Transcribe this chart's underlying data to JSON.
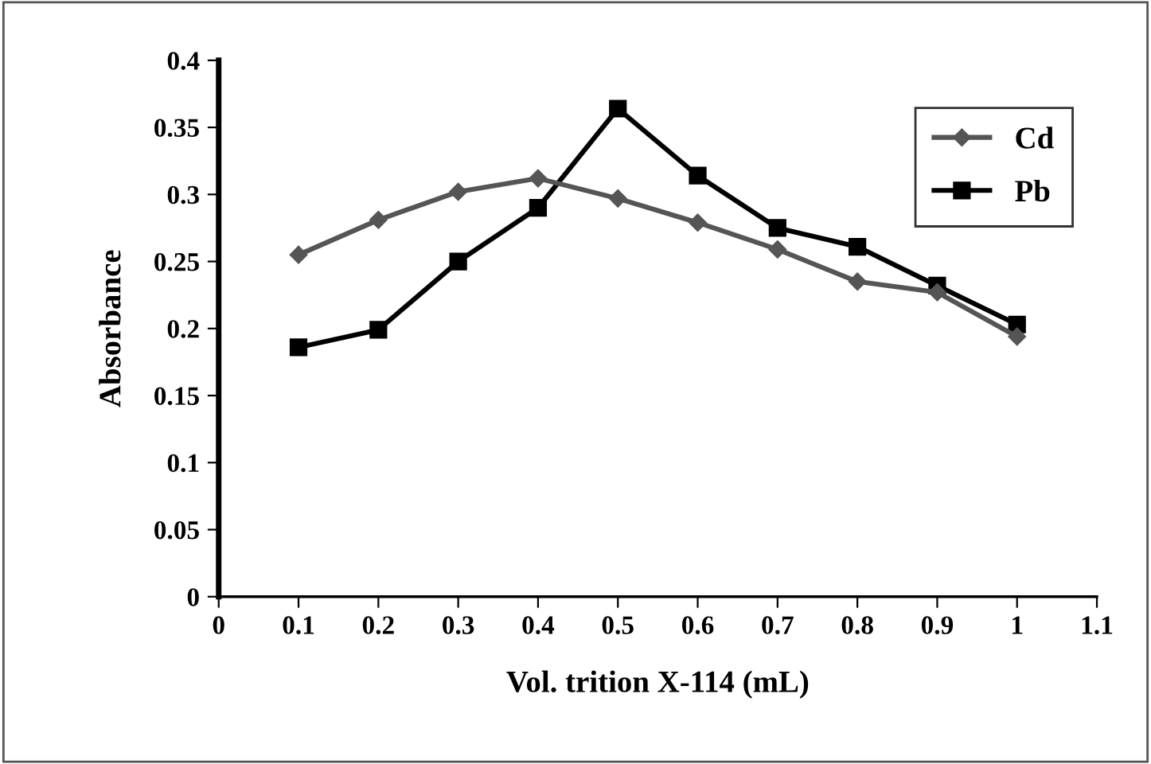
{
  "chart_data": {
    "type": "line",
    "xlabel": "Vol. trition X-114 (mL)",
    "ylabel": "Absorbance",
    "x": [
      0.1,
      0.2,
      0.3,
      0.4,
      0.5,
      0.6,
      0.7,
      0.8,
      0.9,
      1.0
    ],
    "series": [
      {
        "name": "Cd",
        "color": "#555555",
        "marker": "diamond",
        "values": [
          0.255,
          0.281,
          0.302,
          0.312,
          0.297,
          0.279,
          0.259,
          0.235,
          0.227,
          0.194
        ]
      },
      {
        "name": "Pb",
        "color": "#000000",
        "marker": "square",
        "values": [
          0.186,
          0.199,
          0.25,
          0.29,
          0.364,
          0.314,
          0.275,
          0.261,
          0.232,
          0.203
        ]
      }
    ],
    "xlim": [
      0,
      1.1
    ],
    "xticks": [
      0,
      0.1,
      0.2,
      0.3,
      0.4,
      0.5,
      0.6,
      0.7,
      0.8,
      0.9,
      1,
      1.1
    ],
    "ylim": [
      0,
      0.4
    ],
    "yticks": [
      0,
      0.05,
      0.1,
      0.15,
      0.2,
      0.25,
      0.3,
      0.35,
      0.4
    ],
    "grid": false,
    "legend": "top right",
    "line_style": "solid"
  }
}
